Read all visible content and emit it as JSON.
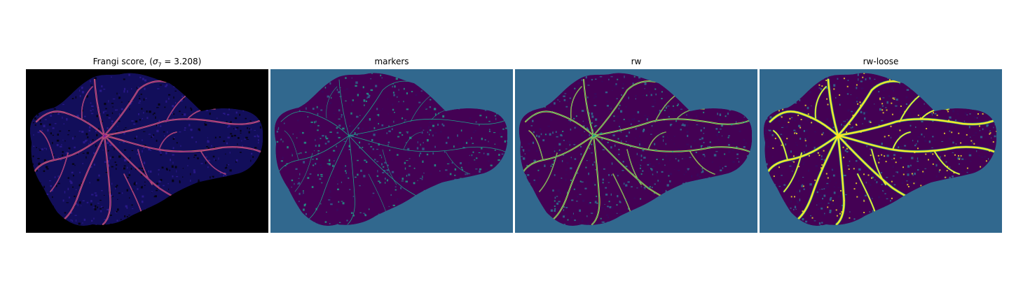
{
  "figure": {
    "panels": [
      {
        "id": "frangi",
        "title_prefix": "Frangi score, (",
        "title_sigma_symbol": "σ",
        "title_sigma_sub": "7",
        "title_suffix": " = 3.208)",
        "background": "#000000",
        "palette": [
          "#0c0930",
          "#2a0f7a",
          "#7a1f9a",
          "#c23a78",
          "#f07a5a",
          "#ffd0a0"
        ]
      },
      {
        "id": "markers",
        "title": "markers",
        "background": "#31688e",
        "palette": [
          "#440154",
          "#1fa08a",
          "#31688e"
        ]
      },
      {
        "id": "rw",
        "title": "rw",
        "background": "#31688e",
        "palette": [
          "#440154",
          "#1fa08a",
          "#fde725"
        ]
      },
      {
        "id": "rw-loose",
        "title": "rw-loose",
        "background": "#31688e",
        "palette": [
          "#440154",
          "#fde725",
          "#37b878"
        ]
      }
    ]
  }
}
